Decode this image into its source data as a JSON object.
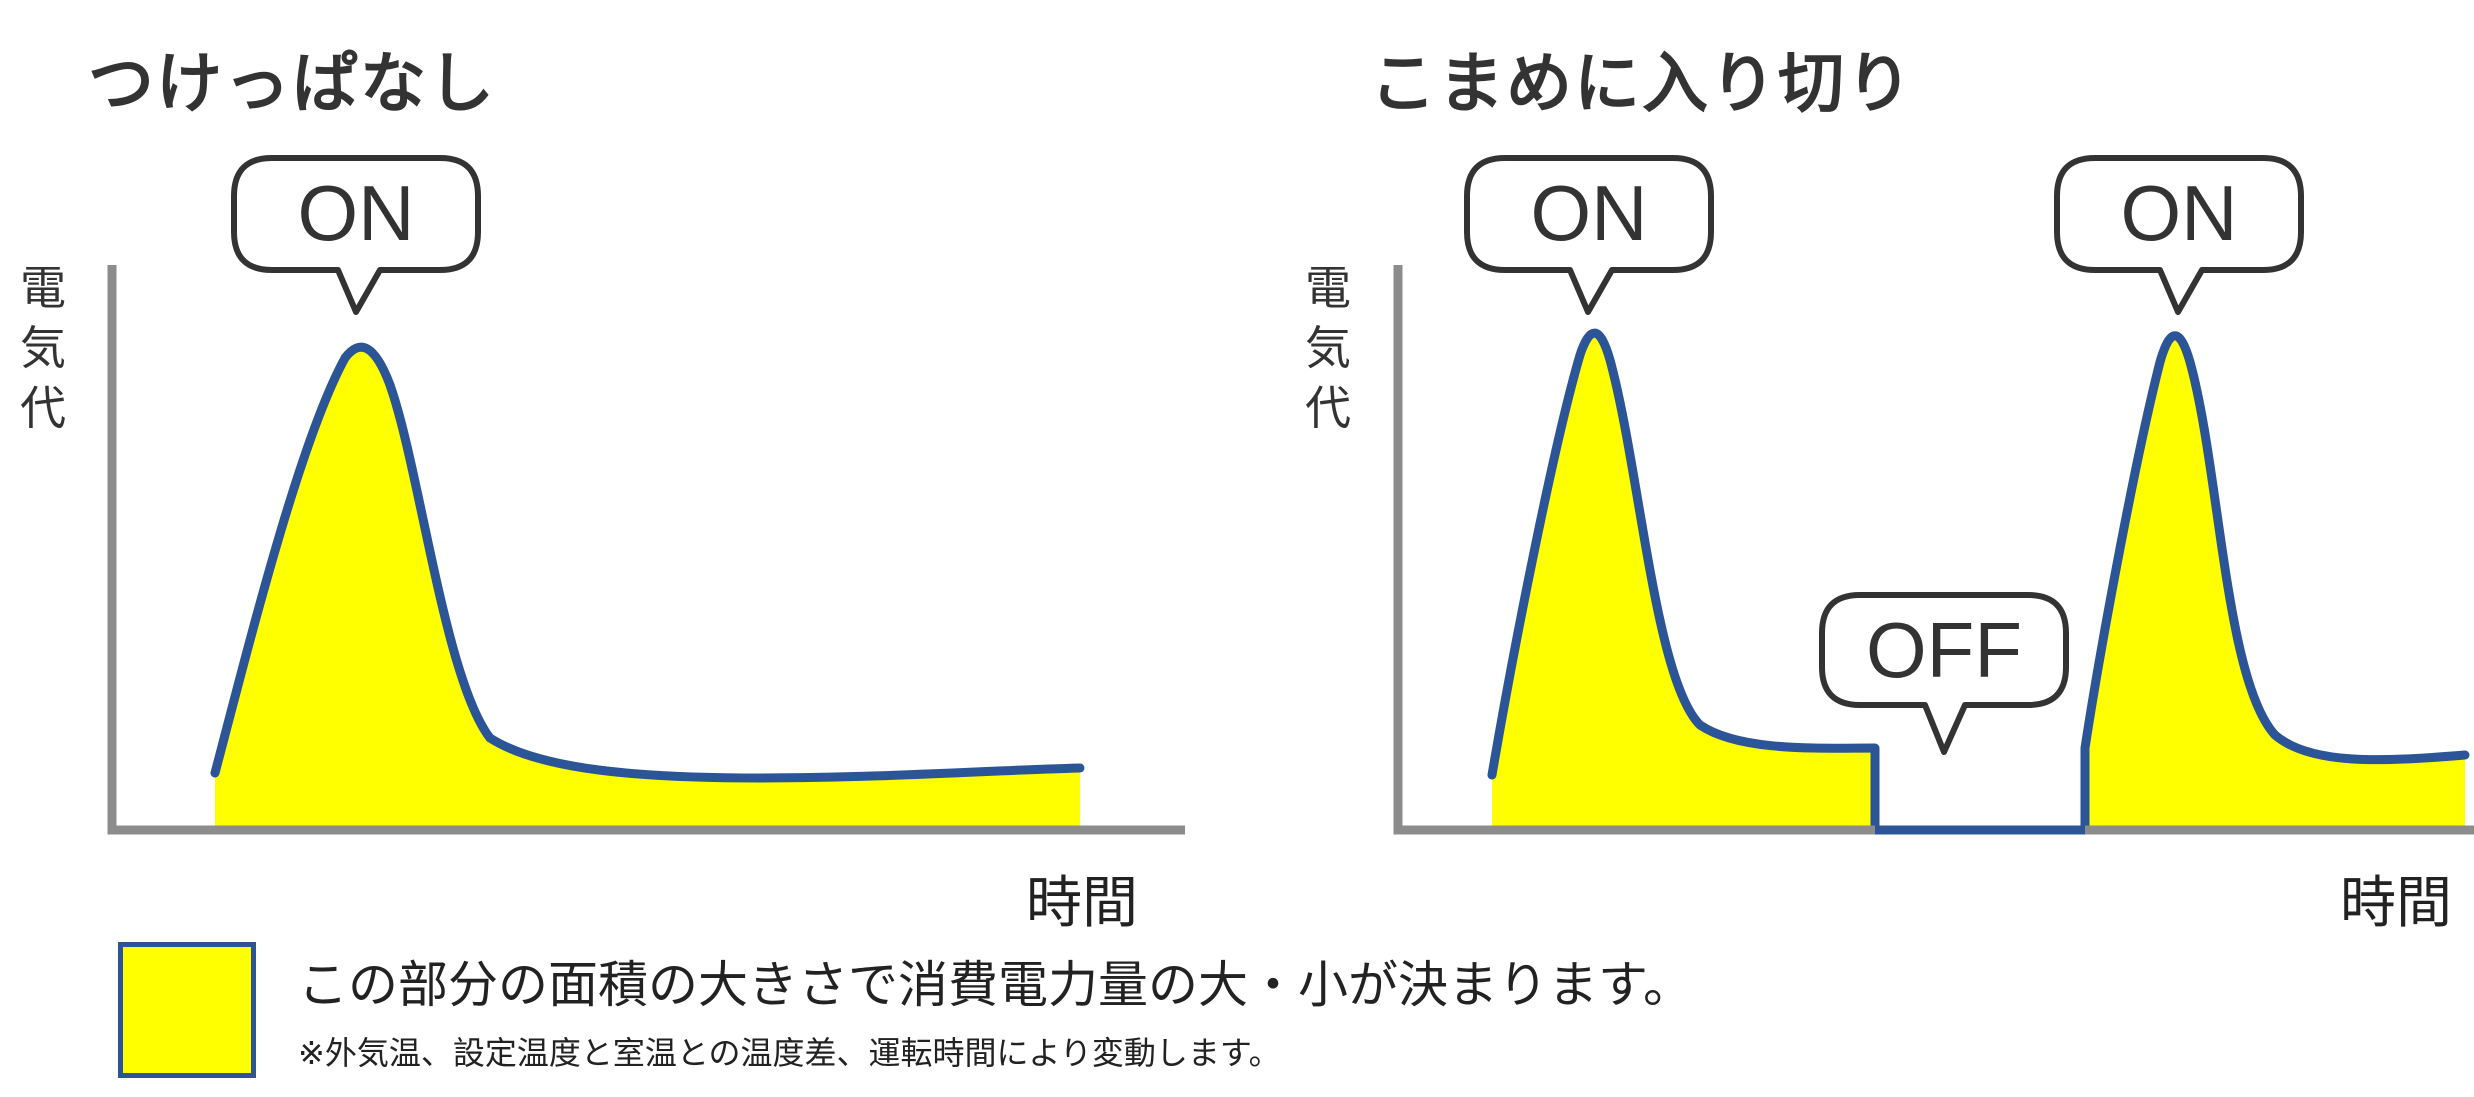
{
  "left_panel": {
    "title": "つけっぱなし",
    "ylabel": [
      "電",
      "気",
      "代"
    ],
    "xlabel": "時間",
    "callouts": [
      "ON"
    ]
  },
  "right_panel": {
    "title": "こまめに入り切り",
    "ylabel": [
      "電",
      "気",
      "代"
    ],
    "xlabel": "時間",
    "callouts": [
      "ON",
      "OFF",
      "ON"
    ]
  },
  "legend": {
    "main_text": "この部分の面積の大きさで消費電力量の大・小が決まります。",
    "note_text": "※外気温、設定温度と室温との温度差、運転時間により変動します。"
  },
  "colors": {
    "fill": "#ffff00",
    "curve": "#2b5597",
    "axis": "#8c8c8c",
    "callout_border": "#333333"
  }
}
